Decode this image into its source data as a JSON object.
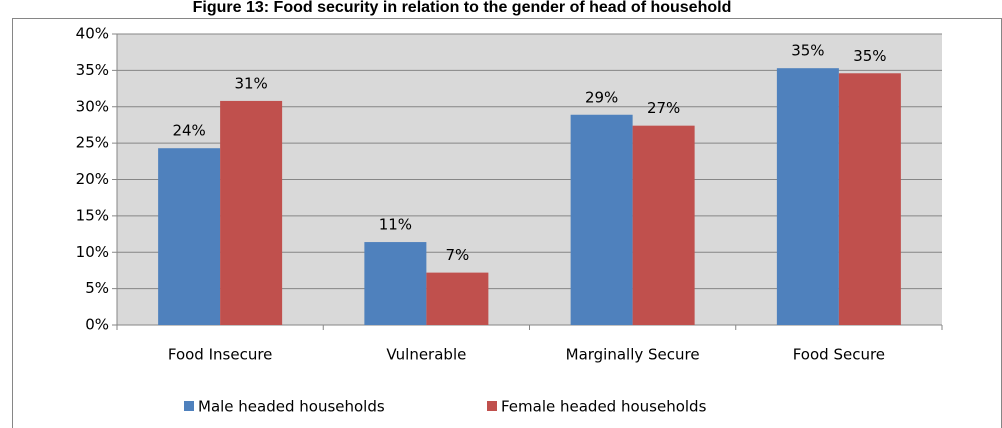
{
  "chart_data": {
    "type": "bar",
    "title": "Figure 13: Food security in relation to the gender of head of household",
    "categories": [
      "Food Insecure",
      "Vulnerable",
      "Marginally Secure",
      "Food Secure"
    ],
    "series": [
      {
        "name": "Male headed households",
        "color": "#4f81bd",
        "values": [
          24.3,
          11.4,
          28.9,
          35.3
        ],
        "value_labels": [
          "24%",
          "11%",
          "29%",
          "35%"
        ]
      },
      {
        "name": "Female headed households",
        "color": "#c0504d",
        "values": [
          30.8,
          7.2,
          27.4,
          34.6
        ],
        "value_labels": [
          "31%",
          "7%",
          "27%",
          "35%"
        ]
      }
    ],
    "ylim": [
      0,
      40
    ],
    "yticks": [
      {
        "value": 0,
        "label": "0%"
      },
      {
        "value": 5,
        "label": "5%"
      },
      {
        "value": 10,
        "label": "10%"
      },
      {
        "value": 15,
        "label": "15%"
      },
      {
        "value": 20,
        "label": "20%"
      },
      {
        "value": 25,
        "label": "25%"
      },
      {
        "value": 30,
        "label": "30%"
      },
      {
        "value": 35,
        "label": "35%"
      },
      {
        "value": 40,
        "label": "40%"
      }
    ],
    "grid": true,
    "legend": "bottom"
  }
}
